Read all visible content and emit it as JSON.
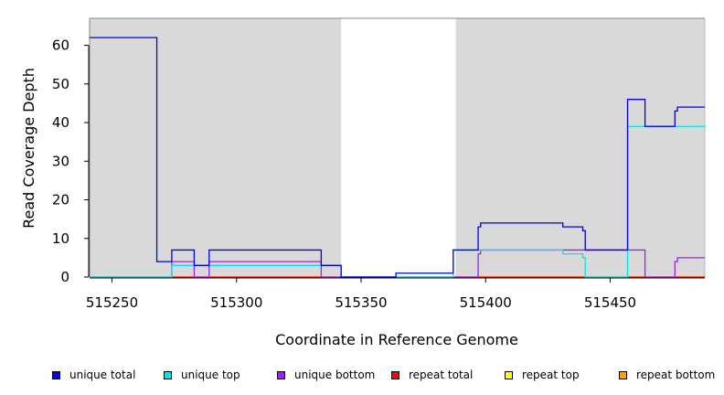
{
  "chart_data": {
    "type": "line",
    "xlabel": "Coordinate in Reference Genome",
    "ylabel": "Read Coverage Depth",
    "xlim": [
      515241,
      515488
    ],
    "ylim": [
      0,
      67
    ],
    "x_ticks": [
      515250,
      515300,
      515350,
      515400,
      515450
    ],
    "y_ticks": [
      0,
      10,
      20,
      30,
      40,
      50,
      60
    ],
    "shaded_regions": [
      [
        515241,
        515342
      ],
      [
        515388,
        515488
      ]
    ],
    "shade_color": "#d9d9d9",
    "legend_position": "bottom",
    "series": [
      {
        "name": "unique total",
        "color": "#0000ee",
        "points": [
          [
            515241,
            62
          ],
          [
            515268,
            62
          ],
          [
            515268,
            4
          ],
          [
            515274,
            4
          ],
          [
            515274,
            7
          ],
          [
            515283,
            7
          ],
          [
            515283,
            3
          ],
          [
            515289,
            3
          ],
          [
            515289,
            7
          ],
          [
            515334,
            7
          ],
          [
            515334,
            3
          ],
          [
            515342,
            3
          ],
          [
            515342,
            0
          ],
          [
            515364,
            0
          ],
          [
            515364,
            1
          ],
          [
            515387,
            1
          ],
          [
            515387,
            7
          ],
          [
            515397,
            7
          ],
          [
            515397,
            13
          ],
          [
            515398,
            13
          ],
          [
            515398,
            14
          ],
          [
            515431,
            14
          ],
          [
            515431,
            13
          ],
          [
            515439,
            13
          ],
          [
            515439,
            12
          ],
          [
            515440,
            12
          ],
          [
            515440,
            7
          ],
          [
            515457,
            7
          ],
          [
            515457,
            46
          ],
          [
            515464,
            46
          ],
          [
            515464,
            39
          ],
          [
            515476,
            39
          ],
          [
            515476,
            43
          ],
          [
            515477,
            43
          ],
          [
            515477,
            44
          ],
          [
            515488,
            44
          ]
        ]
      },
      {
        "name": "unique top",
        "color": "#00e5e5",
        "points": [
          [
            515241,
            0
          ],
          [
            515274,
            0
          ],
          [
            515274,
            3
          ],
          [
            515342,
            3
          ],
          [
            515342,
            0
          ],
          [
            515387,
            0
          ],
          [
            515387,
            7
          ],
          [
            515431,
            7
          ],
          [
            515431,
            6
          ],
          [
            515439,
            6
          ],
          [
            515439,
            5
          ],
          [
            515440,
            5
          ],
          [
            515440,
            0
          ],
          [
            515457,
            0
          ],
          [
            515457,
            39
          ],
          [
            515488,
            39
          ]
        ]
      },
      {
        "name": "unique bottom",
        "color": "#a020f0",
        "points": [
          [
            515241,
            0
          ],
          [
            515274,
            0
          ],
          [
            515274,
            4
          ],
          [
            515283,
            4
          ],
          [
            515283,
            0
          ],
          [
            515289,
            0
          ],
          [
            515289,
            4
          ],
          [
            515334,
            4
          ],
          [
            515334,
            0
          ],
          [
            515397,
            0
          ],
          [
            515397,
            6
          ],
          [
            515398,
            6
          ],
          [
            515398,
            7
          ],
          [
            515464,
            7
          ],
          [
            515464,
            0
          ],
          [
            515476,
            0
          ],
          [
            515476,
            4
          ],
          [
            515477,
            4
          ],
          [
            515477,
            5
          ],
          [
            515488,
            5
          ]
        ]
      },
      {
        "name": "repeat total",
        "color": "#ff0000",
        "points": [
          [
            515241,
            0
          ],
          [
            515488,
            0
          ]
        ]
      },
      {
        "name": "repeat top",
        "color": "#ffff00",
        "points": [
          [
            515241,
            0
          ],
          [
            515488,
            0
          ]
        ]
      },
      {
        "name": "repeat bottom",
        "color": "#ffa500",
        "points": [
          [
            515241,
            0
          ],
          [
            515488,
            0
          ]
        ]
      }
    ]
  }
}
